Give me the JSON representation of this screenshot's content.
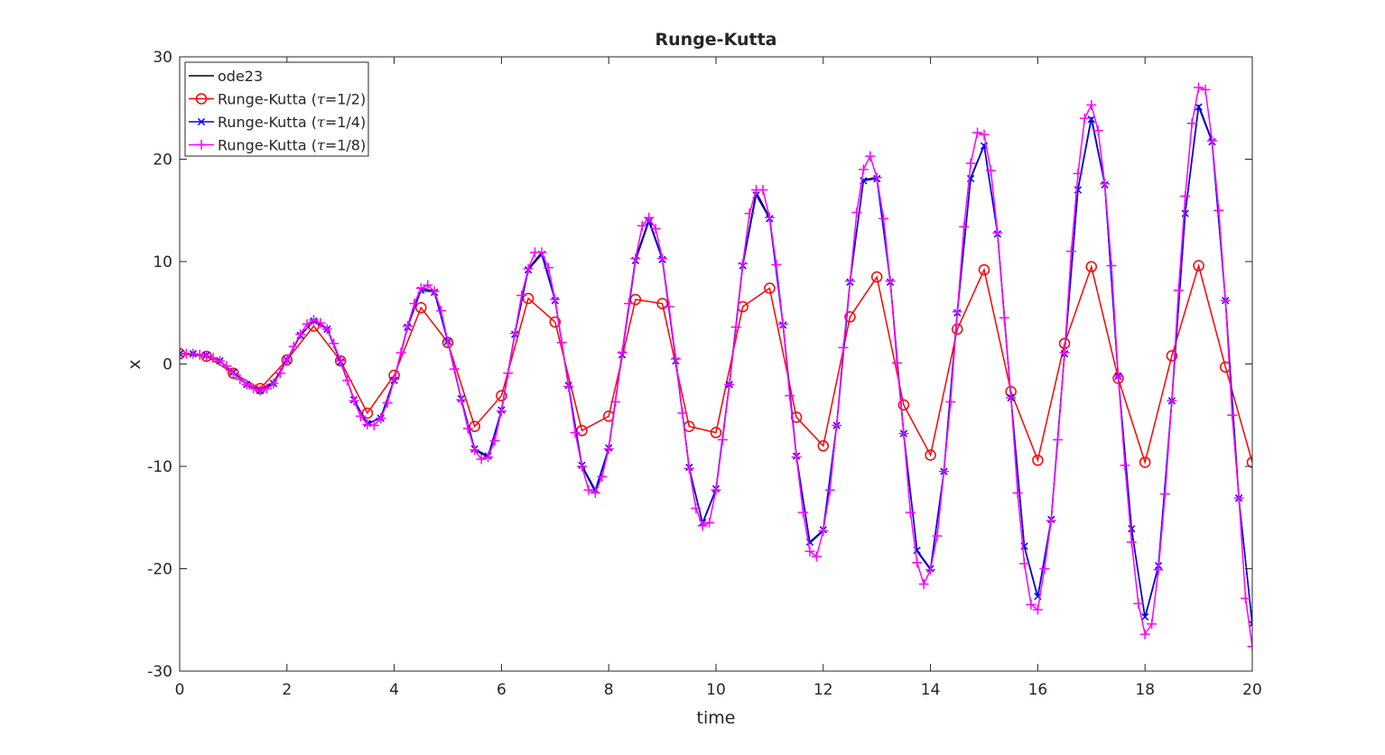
{
  "chart_data": {
    "type": "line",
    "title": "Runge-Kutta",
    "xlabel": "time",
    "ylabel": "x",
    "xlim": [
      0,
      20
    ],
    "ylim": [
      -30,
      30
    ],
    "xticks": [
      "0",
      "2",
      "4",
      "6",
      "8",
      "10",
      "12",
      "14",
      "16",
      "18",
      "20"
    ],
    "yticks": [
      "30",
      "20",
      "10",
      "0",
      "-10",
      "-20",
      "-30"
    ],
    "xtick_values": [
      0,
      2,
      4,
      6,
      8,
      10,
      12,
      14,
      16,
      18,
      20
    ],
    "ytick_values": [
      30,
      20,
      10,
      0,
      -10,
      -20,
      -30
    ],
    "grid": false,
    "legend_position": "top-left",
    "series": [
      {
        "name": "ode23",
        "label_prefix": "ode23",
        "label_tau": "",
        "label_suffix": "",
        "color": "#000000",
        "marker": "none",
        "x": [
          0,
          0.25,
          0.5,
          0.75,
          1,
          1.25,
          1.5,
          1.75,
          2,
          2.25,
          2.5,
          2.75,
          3,
          3.25,
          3.5,
          3.75,
          4,
          4.25,
          4.5,
          4.75,
          5,
          5.25,
          5.5,
          5.75,
          6,
          6.25,
          6.5,
          6.75,
          7,
          7.25,
          7.5,
          7.75,
          8,
          8.25,
          8.5,
          8.75,
          9,
          9.25,
          9.5,
          9.75,
          10,
          10.25,
          10.5,
          10.75,
          11,
          11.25,
          11.5,
          11.75,
          12,
          12.25,
          12.5,
          12.75,
          13,
          13.25,
          13.5,
          13.75,
          14,
          14.25,
          14.5,
          14.75,
          15,
          15.25,
          15.5,
          15.75,
          16,
          16.25,
          16.5,
          16.75,
          17,
          17.25,
          17.5,
          17.75,
          18,
          18.25,
          18.5,
          18.75,
          19,
          19.25,
          19.5,
          19.75,
          20
        ],
        "y": [
          1,
          1,
          0.8,
          0.3,
          -0.9,
          -2.0,
          -2.5,
          -1.8,
          0.4,
          2.8,
          4.2,
          3.5,
          0.3,
          -3.5,
          -5.9,
          -5.2,
          -1.5,
          3.7,
          7.4,
          7.1,
          2.2,
          -3.5,
          -8.4,
          -9.1,
          -4.6,
          3.0,
          9.3,
          10.9,
          6.3,
          -2.1,
          -10.0,
          -12.5,
          -8.3,
          1.1,
          10.3,
          14.1,
          10.3,
          0.5,
          -10.2,
          -15.6,
          -12.3,
          -2.0,
          9.8,
          16.8,
          14.3,
          3.9,
          -9.1,
          -17.5,
          -16.3,
          -6.0,
          8.1,
          18.0,
          18.2,
          8.1,
          -6.8,
          -18.3,
          -20.1,
          -10.5,
          5.1,
          18.2,
          21.4,
          12.8,
          -3.3,
          -17.9,
          -22.8,
          -15.3,
          1.1,
          17.1,
          24.1,
          17.6,
          -1.2,
          -16.2,
          -24.8,
          -19.8,
          -3.6,
          14.8,
          25.3,
          21.8,
          6.2,
          -13.2,
          -25.4
        ]
      },
      {
        "name": "Runge-Kutta (τ=1/2)",
        "label_prefix": "Runge-Kutta (",
        "label_tau": "τ",
        "label_suffix": "=1/2)",
        "color": "#ff0000",
        "marker": "circle",
        "x": [
          0,
          0.5,
          1,
          1.5,
          2,
          2.5,
          3,
          3.5,
          4,
          4.5,
          5,
          5.5,
          6,
          6.5,
          7,
          7.5,
          8,
          8.5,
          9,
          9.5,
          10,
          10.5,
          11,
          11.5,
          12,
          12.5,
          13,
          13.5,
          14,
          14.5,
          15,
          15.5,
          16,
          16.5,
          17,
          17.5,
          18,
          18.5,
          19,
          19.5,
          20
        ],
        "y": [
          1,
          0.75,
          -0.9,
          -2.4,
          0.4,
          3.7,
          0.3,
          -4.8,
          -1.1,
          5.5,
          2.1,
          -6.1,
          -3.1,
          6.4,
          4.1,
          -6.5,
          -5.1,
          6.3,
          5.9,
          -6.1,
          -6.7,
          5.6,
          7.4,
          -5.2,
          -8.0,
          4.6,
          8.5,
          -4.0,
          -8.9,
          3.4,
          9.2,
          -2.7,
          -9.4,
          2.0,
          9.5,
          -1.4,
          -9.6,
          0.8,
          9.6,
          -0.3,
          -9.6
        ]
      },
      {
        "name": "Runge-Kutta (τ=1/4)",
        "label_prefix": "Runge-Kutta (",
        "label_tau": "τ",
        "label_suffix": "=1/4)",
        "color": "#0000ff",
        "marker": "x",
        "x": [
          0,
          0.25,
          0.5,
          0.75,
          1,
          1.25,
          1.5,
          1.75,
          2,
          2.25,
          2.5,
          2.75,
          3,
          3.25,
          3.5,
          3.75,
          4,
          4.25,
          4.5,
          4.75,
          5,
          5.25,
          5.5,
          5.75,
          6,
          6.25,
          6.5,
          6.75,
          7,
          7.25,
          7.5,
          7.75,
          8,
          8.25,
          8.5,
          8.75,
          9,
          9.25,
          9.5,
          9.75,
          10,
          10.25,
          10.5,
          10.75,
          11,
          11.25,
          11.5,
          11.75,
          12,
          12.25,
          12.5,
          12.75,
          13,
          13.25,
          13.5,
          13.75,
          14,
          14.25,
          14.5,
          14.75,
          15,
          15.25,
          15.5,
          15.75,
          16,
          16.25,
          16.5,
          16.75,
          17,
          17.25,
          17.5,
          17.75,
          18,
          18.25,
          18.5,
          18.75,
          19,
          19.25,
          19.5,
          19.75,
          20
        ],
        "y": [
          1,
          1,
          0.85,
          0.3,
          -0.8,
          -2.0,
          -2.6,
          -1.9,
          0.4,
          2.8,
          4.2,
          3.4,
          0.2,
          -3.5,
          -5.8,
          -5.3,
          -1.6,
          3.6,
          7.2,
          7.0,
          2.2,
          -3.4,
          -8.3,
          -9.0,
          -4.5,
          2.9,
          9.2,
          10.7,
          6.2,
          -2.1,
          -9.9,
          -12.3,
          -8.2,
          0.9,
          10.1,
          13.9,
          10.2,
          0.3,
          -10.1,
          -15.5,
          -12.2,
          -2.0,
          9.6,
          16.5,
          14.2,
          3.8,
          -9.0,
          -17.4,
          -16.2,
          -6.0,
          8.0,
          17.9,
          18.1,
          8.0,
          -6.8,
          -18.2,
          -20.0,
          -10.5,
          5.0,
          18.1,
          21.3,
          12.7,
          -3.3,
          -17.8,
          -22.7,
          -15.2,
          1.0,
          17.0,
          23.9,
          17.5,
          -1.2,
          -16.1,
          -24.7,
          -19.7,
          -3.6,
          14.7,
          25.1,
          21.7,
          6.2,
          -13.1,
          -25.4
        ]
      },
      {
        "name": "Runge-Kutta (τ=1/8)",
        "label_prefix": "Runge-Kutta (",
        "label_tau": "τ",
        "label_suffix": "=1/8)",
        "color": "#ff00ff",
        "marker": "plus",
        "x": [
          0,
          0.125,
          0.25,
          0.375,
          0.5,
          0.625,
          0.75,
          0.875,
          1,
          1.125,
          1.25,
          1.375,
          1.5,
          1.625,
          1.75,
          1.875,
          2,
          2.125,
          2.25,
          2.375,
          2.5,
          2.625,
          2.75,
          2.875,
          3,
          3.125,
          3.25,
          3.375,
          3.5,
          3.625,
          3.75,
          3.875,
          4,
          4.125,
          4.25,
          4.375,
          4.5,
          4.625,
          4.75,
          4.875,
          5,
          5.125,
          5.25,
          5.375,
          5.5,
          5.625,
          5.75,
          5.875,
          6,
          6.125,
          6.25,
          6.375,
          6.5,
          6.625,
          6.75,
          6.875,
          7,
          7.125,
          7.25,
          7.375,
          7.5,
          7.625,
          7.75,
          7.875,
          8,
          8.125,
          8.25,
          8.375,
          8.5,
          8.625,
          8.75,
          8.875,
          9,
          9.125,
          9.25,
          9.375,
          9.5,
          9.625,
          9.75,
          9.875,
          10,
          10.125,
          10.25,
          10.375,
          10.5,
          10.625,
          10.75,
          10.875,
          11,
          11.125,
          11.25,
          11.375,
          11.5,
          11.625,
          11.75,
          11.875,
          12,
          12.125,
          12.25,
          12.375,
          12.5,
          12.625,
          12.75,
          12.875,
          13,
          13.125,
          13.25,
          13.375,
          13.5,
          13.625,
          13.75,
          13.875,
          14,
          14.125,
          14.25,
          14.375,
          14.5,
          14.625,
          14.75,
          14.875,
          15,
          15.125,
          15.25,
          15.375,
          15.5,
          15.625,
          15.75,
          15.875,
          16,
          16.125,
          16.25,
          16.375,
          16.5,
          16.625,
          16.75,
          16.875,
          17,
          17.125,
          17.25,
          17.375,
          17.5,
          17.625,
          17.75,
          17.875,
          18,
          18.125,
          18.25,
          18.375,
          18.5,
          18.625,
          18.75,
          18.875,
          19,
          19.125,
          19.25,
          19.375,
          19.5,
          19.625,
          19.75,
          19.875,
          20
        ],
        "y": [
          1,
          1.0,
          1.0,
          0.9,
          0.8,
          0.6,
          0.3,
          -0.2,
          -0.9,
          -1.5,
          -2.0,
          -2.4,
          -2.6,
          -2.4,
          -1.9,
          -0.9,
          0.4,
          1.7,
          2.9,
          3.9,
          4.3,
          4.0,
          3.4,
          2.0,
          0.3,
          -1.6,
          -3.6,
          -5.1,
          -5.9,
          -6.0,
          -5.3,
          -3.8,
          -1.5,
          1.1,
          3.7,
          5.9,
          7.4,
          7.7,
          7.1,
          5.2,
          2.2,
          -0.5,
          -3.5,
          -6.3,
          -8.4,
          -9.3,
          -9.1,
          -7.5,
          -4.6,
          -0.9,
          3.0,
          6.7,
          9.3,
          10.9,
          10.9,
          9.4,
          6.3,
          2.1,
          -2.2,
          -6.7,
          -10.0,
          -12.3,
          -12.6,
          -11.0,
          -8.3,
          -3.7,
          1.1,
          5.9,
          10.3,
          13.5,
          14.3,
          13.2,
          10.3,
          5.6,
          0.5,
          -4.8,
          -10.2,
          -14.1,
          -15.8,
          -15.5,
          -12.3,
          -7.4,
          -2.0,
          3.6,
          9.8,
          14.7,
          17.0,
          17.0,
          14.3,
          9.7,
          3.9,
          -3.1,
          -9.1,
          -14.5,
          -18.3,
          -18.8,
          -16.3,
          -12.3,
          -6.0,
          1.6,
          8.1,
          14.8,
          19.0,
          20.3,
          18.2,
          14.2,
          8.1,
          0.1,
          -6.8,
          -14.5,
          -19.4,
          -21.5,
          -20.1,
          -16.8,
          -10.5,
          -3.7,
          5.1,
          13.4,
          19.6,
          22.6,
          22.4,
          18.9,
          12.8,
          4.5,
          -3.3,
          -12.6,
          -19.5,
          -23.5,
          -24.0,
          -20.0,
          -15.3,
          -7.4,
          1.1,
          11.0,
          18.6,
          24.0,
          25.3,
          22.8,
          17.6,
          9.6,
          -1.2,
          -9.9,
          -17.4,
          -23.4,
          -26.4,
          -25.4,
          -20.1,
          -12.7,
          -3.6,
          7.2,
          16.4,
          23.5,
          27.0,
          26.8,
          21.8,
          15.0,
          6.2,
          -5.0,
          -13.1,
          -22.9,
          -27.6
        ]
      }
    ]
  }
}
